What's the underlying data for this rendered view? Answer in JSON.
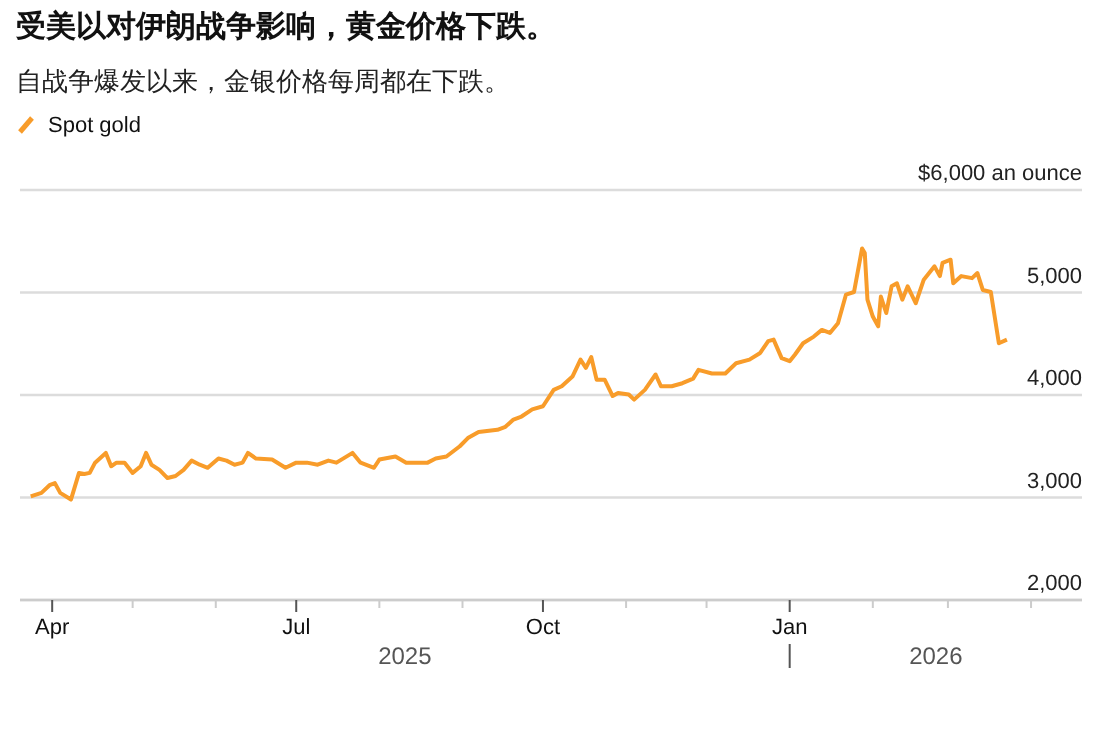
{
  "chart_data": {
    "type": "line",
    "title": "受美以对伊朗战争影响，黄金价格下跌。",
    "subtitle": "自战争爆发以来，金银价格每周都在下跌。",
    "legend": "top left",
    "grid": "y",
    "xlim": [
      "2025-03-20",
      "2026-04-20"
    ],
    "xticks": [
      {
        "value": "2025-04-01",
        "label": "Apr"
      },
      {
        "value": "2025-05-01",
        "label": null
      },
      {
        "value": "2025-06-01",
        "label": null
      },
      {
        "value": "2025-07-01",
        "label": "Jul"
      },
      {
        "value": "2025-08-01",
        "label": null
      },
      {
        "value": "2025-09-01",
        "label": null
      },
      {
        "value": "2025-10-01",
        "label": "Oct"
      },
      {
        "value": "2025-11-01",
        "label": null
      },
      {
        "value": "2025-12-01",
        "label": null
      },
      {
        "value": "2026-01-01",
        "label": "Jan"
      },
      {
        "value": "2026-02-01",
        "label": null
      },
      {
        "value": "2026-03-01",
        "label": null
      },
      {
        "value": "2026-04-01",
        "label": null
      }
    ],
    "ylim": [
      2000,
      6000
    ],
    "yticks": [
      {
        "value": 2000,
        "label": "2,000"
      },
      {
        "value": 3000,
        "label": "3,000"
      },
      {
        "value": 4000,
        "label": "4,000"
      },
      {
        "value": 5000,
        "label": "5,000"
      },
      {
        "value": 6000,
        "label": "$6,000 an ounce"
      }
    ],
    "annotations": [
      "2025",
      "2026"
    ],
    "x": [
      "2025-03-24",
      "2025-03-28",
      "2025-03-31",
      "2025-04-02",
      "2025-04-04",
      "2025-04-08",
      "2025-04-11",
      "2025-04-13",
      "2025-04-15",
      "2025-04-17",
      "2025-04-21",
      "2025-04-23",
      "2025-04-25",
      "2025-04-28",
      "2025-05-01",
      "2025-05-04",
      "2025-05-06",
      "2025-05-08",
      "2025-05-11",
      "2025-05-14",
      "2025-05-17",
      "2025-05-20",
      "2025-05-23",
      "2025-05-26",
      "2025-05-29",
      "2025-06-02",
      "2025-06-05",
      "2025-06-08",
      "2025-06-11",
      "2025-06-13",
      "2025-06-16",
      "2025-06-22",
      "2025-06-27",
      "2025-07-01",
      "2025-07-05",
      "2025-07-09",
      "2025-07-13",
      "2025-07-16",
      "2025-07-22",
      "2025-07-25",
      "2025-07-30",
      "2025-08-01",
      "2025-08-07",
      "2025-08-11",
      "2025-08-19",
      "2025-08-22",
      "2025-08-26",
      "2025-08-31",
      "2025-09-03",
      "2025-09-07",
      "2025-09-14",
      "2025-09-17",
      "2025-09-20",
      "2025-09-23",
      "2025-09-27",
      "2025-10-01",
      "2025-10-05",
      "2025-10-08",
      "2025-10-12",
      "2025-10-15",
      "2025-10-17",
      "2025-10-19",
      "2025-10-21",
      "2025-10-24",
      "2025-10-27",
      "2025-10-29",
      "2025-11-02",
      "2025-11-04",
      "2025-11-08",
      "2025-11-12",
      "2025-11-14",
      "2025-11-18",
      "2025-11-22",
      "2025-11-26",
      "2025-11-28",
      "2025-12-03",
      "2025-12-08",
      "2025-12-12",
      "2025-12-17",
      "2025-12-21",
      "2025-12-24",
      "2025-12-26",
      "2025-12-29",
      "2026-01-01",
      "2026-01-03",
      "2026-01-06",
      "2026-01-10",
      "2026-01-13",
      "2026-01-16",
      "2026-01-19",
      "2026-01-22",
      "2026-01-25",
      "2026-01-28",
      "2026-01-29",
      "2026-01-30",
      "2026-02-01",
      "2026-02-03",
      "2026-02-04",
      "2026-02-06",
      "2026-02-08",
      "2026-02-10",
      "2026-02-12",
      "2026-02-14",
      "2026-02-17",
      "2026-02-20",
      "2026-02-24",
      "2026-02-26",
      "2026-02-27",
      "2026-03-02",
      "2026-03-03",
      "2026-03-06",
      "2026-03-10",
      "2026-03-12",
      "2026-03-14",
      "2026-03-17",
      "2026-03-20",
      "2026-03-23"
    ],
    "series": [
      {
        "name": "Spot gold",
        "color": "#f89c2a",
        "values": [
          3010,
          3045,
          3120,
          3140,
          3045,
          2980,
          3240,
          3230,
          3240,
          3340,
          3435,
          3305,
          3340,
          3340,
          3240,
          3305,
          3435,
          3320,
          3270,
          3190,
          3210,
          3270,
          3360,
          3320,
          3290,
          3380,
          3360,
          3320,
          3340,
          3435,
          3380,
          3370,
          3290,
          3340,
          3340,
          3320,
          3360,
          3340,
          3435,
          3340,
          3290,
          3370,
          3400,
          3340,
          3340,
          3380,
          3400,
          3500,
          3580,
          3640,
          3660,
          3690,
          3760,
          3790,
          3860,
          3890,
          4050,
          4085,
          4180,
          4345,
          4265,
          4370,
          4150,
          4150,
          3990,
          4020,
          4005,
          3955,
          4050,
          4200,
          4085,
          4085,
          4115,
          4160,
          4245,
          4210,
          4210,
          4310,
          4345,
          4410,
          4525,
          4540,
          4360,
          4330,
          4395,
          4505,
          4570,
          4635,
          4605,
          4700,
          4980,
          5005,
          5430,
          5385,
          4930,
          4765,
          4670,
          4960,
          4800,
          5060,
          5090,
          4930,
          5060,
          4895,
          5125,
          5255,
          5160,
          5290,
          5320,
          5090,
          5160,
          5140,
          5190,
          5025,
          5005,
          4505,
          4540
        ]
      }
    ]
  }
}
